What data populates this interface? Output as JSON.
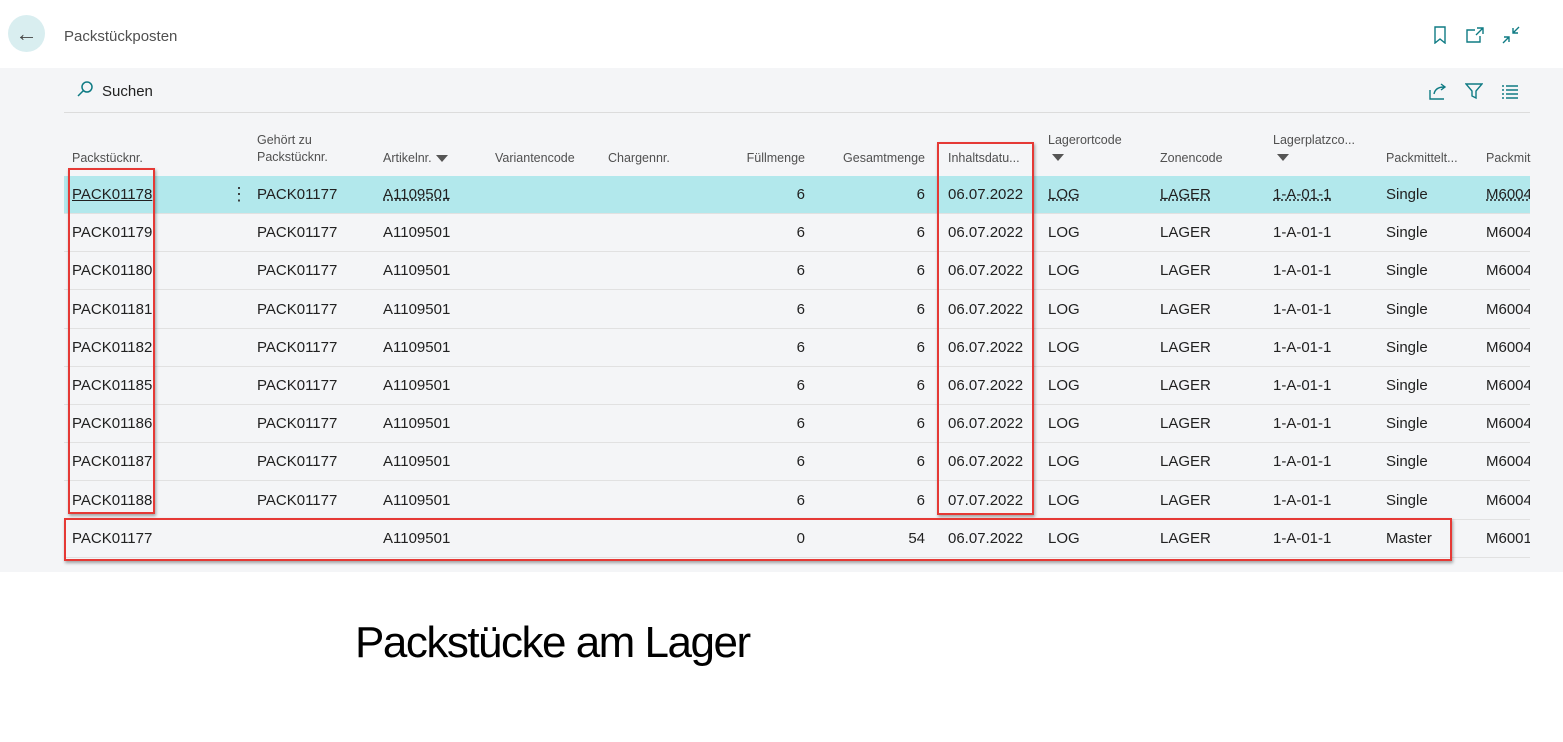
{
  "header": {
    "title": "Packstückposten",
    "icons": [
      "arrow-left-icon",
      "bookmark-icon",
      "open-new-window-icon",
      "collapse-icon"
    ]
  },
  "actionbar": {
    "search_label": "Suchen",
    "icons": [
      "share-icon",
      "filter-icon",
      "list-view-icon"
    ]
  },
  "columns": [
    {
      "label": "Packstücknr.",
      "filter": false
    },
    {
      "label": "Gehört zu\nPackstücknr.",
      "filter": false
    },
    {
      "label": "Artikelnr.",
      "filter": true
    },
    {
      "label": "Variantencode",
      "filter": false
    },
    {
      "label": "Chargennr.",
      "filter": false
    },
    {
      "label": "Füllmenge",
      "filter": false
    },
    {
      "label": "Gesamtmenge",
      "filter": false
    },
    {
      "label": "Inhaltsdatu...",
      "filter": false
    },
    {
      "label": "Lagerortcode",
      "filter": true
    },
    {
      "label": "Zonencode",
      "filter": false
    },
    {
      "label": "Lagerplatzco...",
      "filter": true
    },
    {
      "label": "Packmittelt...",
      "filter": false
    },
    {
      "label": "Packmit",
      "filter": false
    }
  ],
  "rows": [
    {
      "selected": true,
      "cells": [
        "PACK01178",
        "PACK01177",
        "A1109501",
        "",
        "",
        "6",
        "6",
        "06.07.2022",
        "LOG",
        "LAGER",
        "1-A-01-1",
        "Single",
        "M6004"
      ]
    },
    {
      "cells": [
        "PACK01179",
        "PACK01177",
        "A1109501",
        "",
        "",
        "6",
        "6",
        "06.07.2022",
        "LOG",
        "LAGER",
        "1-A-01-1",
        "Single",
        "M6004"
      ]
    },
    {
      "cells": [
        "PACK01180",
        "PACK01177",
        "A1109501",
        "",
        "",
        "6",
        "6",
        "06.07.2022",
        "LOG",
        "LAGER",
        "1-A-01-1",
        "Single",
        "M6004"
      ]
    },
    {
      "cells": [
        "PACK01181",
        "PACK01177",
        "A1109501",
        "",
        "",
        "6",
        "6",
        "06.07.2022",
        "LOG",
        "LAGER",
        "1-A-01-1",
        "Single",
        "M6004"
      ]
    },
    {
      "cells": [
        "PACK01182",
        "PACK01177",
        "A1109501",
        "",
        "",
        "6",
        "6",
        "06.07.2022",
        "LOG",
        "LAGER",
        "1-A-01-1",
        "Single",
        "M6004"
      ]
    },
    {
      "cells": [
        "PACK01185",
        "PACK01177",
        "A1109501",
        "",
        "",
        "6",
        "6",
        "06.07.2022",
        "LOG",
        "LAGER",
        "1-A-01-1",
        "Single",
        "M6004"
      ]
    },
    {
      "cells": [
        "PACK01186",
        "PACK01177",
        "A1109501",
        "",
        "",
        "6",
        "6",
        "06.07.2022",
        "LOG",
        "LAGER",
        "1-A-01-1",
        "Single",
        "M6004"
      ]
    },
    {
      "cells": [
        "PACK01187",
        "PACK01177",
        "A1109501",
        "",
        "",
        "6",
        "6",
        "06.07.2022",
        "LOG",
        "LAGER",
        "1-A-01-1",
        "Single",
        "M6004"
      ]
    },
    {
      "cells": [
        "PACK01188",
        "PACK01177",
        "A1109501",
        "",
        "",
        "6",
        "6",
        "07.07.2022",
        "LOG",
        "LAGER",
        "1-A-01-1",
        "Single",
        "M6004"
      ]
    },
    {
      "cells": [
        "PACK01177",
        "",
        "A1109501",
        "",
        "",
        "0",
        "54",
        "06.07.2022",
        "LOG",
        "LAGER",
        "1-A-01-1",
        "Master",
        "M6001"
      ]
    }
  ],
  "annotation_color": "#e53935",
  "selected_row_color": "#b2e8ec",
  "caption": "Packstücke am Lager"
}
